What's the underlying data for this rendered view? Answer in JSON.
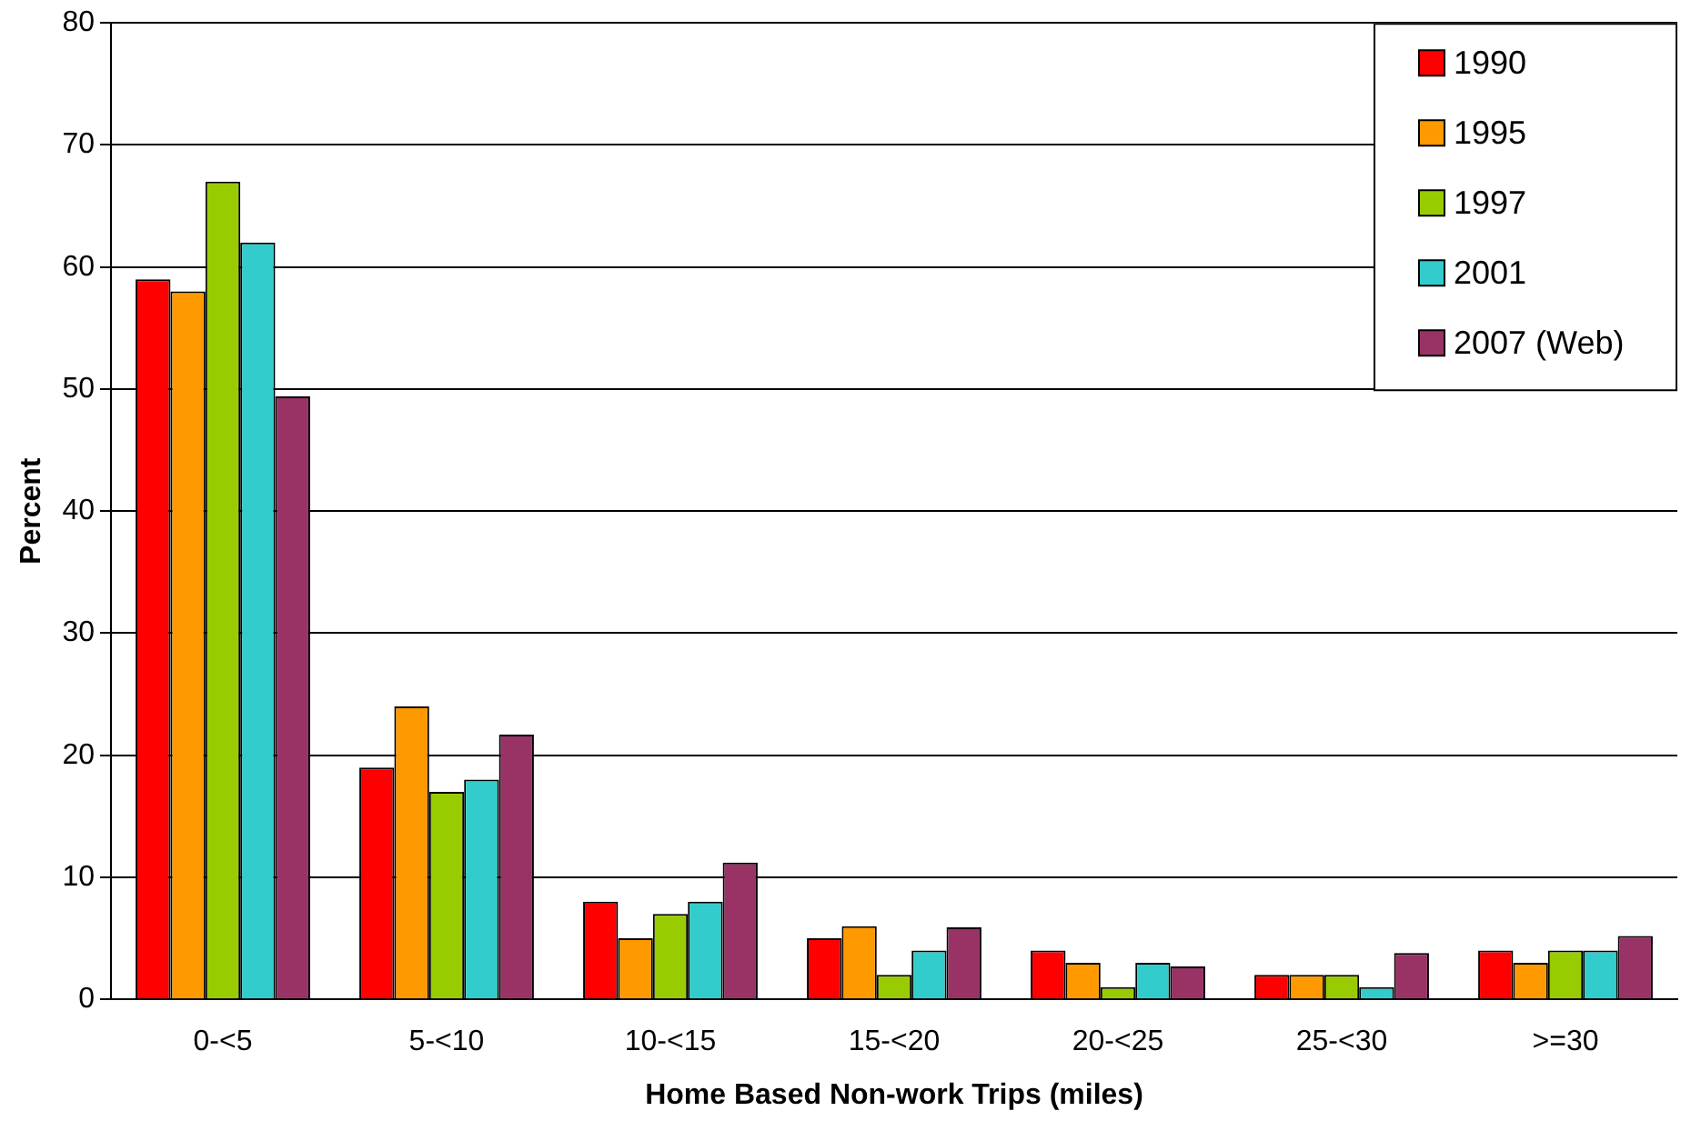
{
  "chart_data": {
    "type": "bar",
    "xlabel": "Home Based Non-work Trips (miles)",
    "ylabel": "Percent",
    "categories": [
      "0-<5",
      "5-<10",
      "10-<15",
      "15-<20",
      "20-<25",
      "25-<30",
      ">=30"
    ],
    "series": [
      {
        "name": "1990",
        "color": "#ff0000",
        "values": [
          59,
          19,
          8,
          5,
          4,
          2,
          4
        ]
      },
      {
        "name": "1995",
        "color": "#ff9900",
        "values": [
          58,
          24,
          5,
          6,
          3,
          2,
          3
        ]
      },
      {
        "name": "1997",
        "color": "#99cc00",
        "values": [
          67,
          17,
          7,
          2,
          1,
          2,
          4
        ]
      },
      {
        "name": "2001",
        "color": "#33cccc",
        "values": [
          62,
          18,
          8,
          4,
          3,
          1,
          4
        ]
      },
      {
        "name": "2007 (Web)",
        "color": "#993366",
        "values": [
          49.4,
          21.7,
          11.2,
          5.9,
          2.7,
          3.8,
          5.2
        ]
      }
    ],
    "ylim": [
      0,
      80
    ],
    "yticks": [
      0,
      10,
      20,
      30,
      40,
      50,
      60,
      70,
      80
    ],
    "grid": "y",
    "legend": "top right"
  }
}
